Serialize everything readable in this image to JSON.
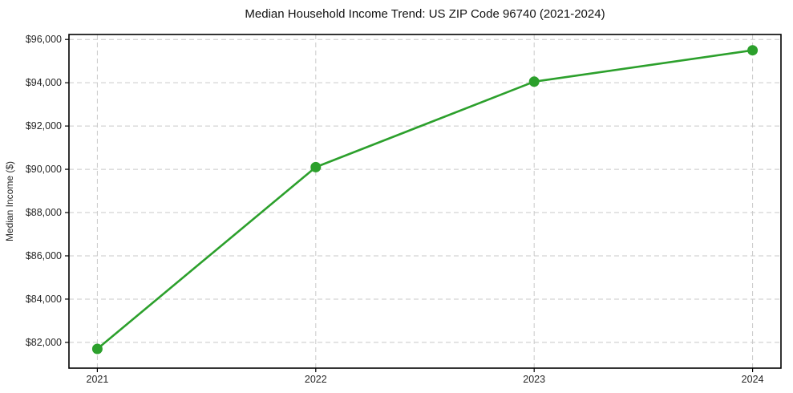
{
  "chart_data": {
    "type": "line",
    "title": "Median Household Income Trend: US ZIP Code 96740 (2021-2024)",
    "xlabel": "",
    "ylabel": "Median Income ($)",
    "x": [
      2021,
      2022,
      2023,
      2024
    ],
    "x_tick_labels": [
      "2021",
      "2022",
      "2023",
      "2024"
    ],
    "values": [
      81700,
      90100,
      94050,
      95500
    ],
    "y_ticks": [
      82000,
      84000,
      86000,
      88000,
      90000,
      92000,
      94000,
      96000
    ],
    "y_tick_labels": [
      "$82,000",
      "$84,000",
      "$86,000",
      "$88,000",
      "$90,000",
      "$92,000",
      "$94,000",
      "$96,000"
    ],
    "xlim": [
      2020.87,
      2024.13
    ],
    "ylim": [
      80810,
      96230
    ],
    "grid": true,
    "grid_style": "dashed",
    "legend": "none",
    "line_color": "#2ca02c",
    "marker": "circle",
    "marker_radius": 6.5,
    "line_width": 2.6,
    "grid_color": "#c9c9c9",
    "axes_color": "#000000",
    "text_color": "#262626"
  }
}
